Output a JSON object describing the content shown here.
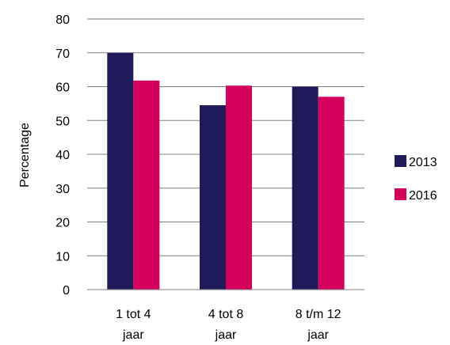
{
  "chart_data": {
    "type": "bar",
    "title": "",
    "xlabel": "",
    "ylabel": "Percentage",
    "ylim": [
      0,
      80
    ],
    "yticks": [
      "0",
      "10",
      "20",
      "30",
      "40",
      "50",
      "60",
      "70",
      "80"
    ],
    "grid": true,
    "legend_position": "right",
    "categories": [
      [
        "1 tot 4",
        "jaar"
      ],
      [
        "4 tot 8",
        "jaar"
      ],
      [
        "8 t/m 12",
        "jaar"
      ]
    ],
    "series": [
      {
        "name": "2013",
        "color": "#1f1a5a",
        "values": [
          70,
          54.5,
          60
        ]
      },
      {
        "name": "2016",
        "color": "#d6005c",
        "values": [
          61.8,
          60.3,
          57
        ]
      }
    ]
  }
}
